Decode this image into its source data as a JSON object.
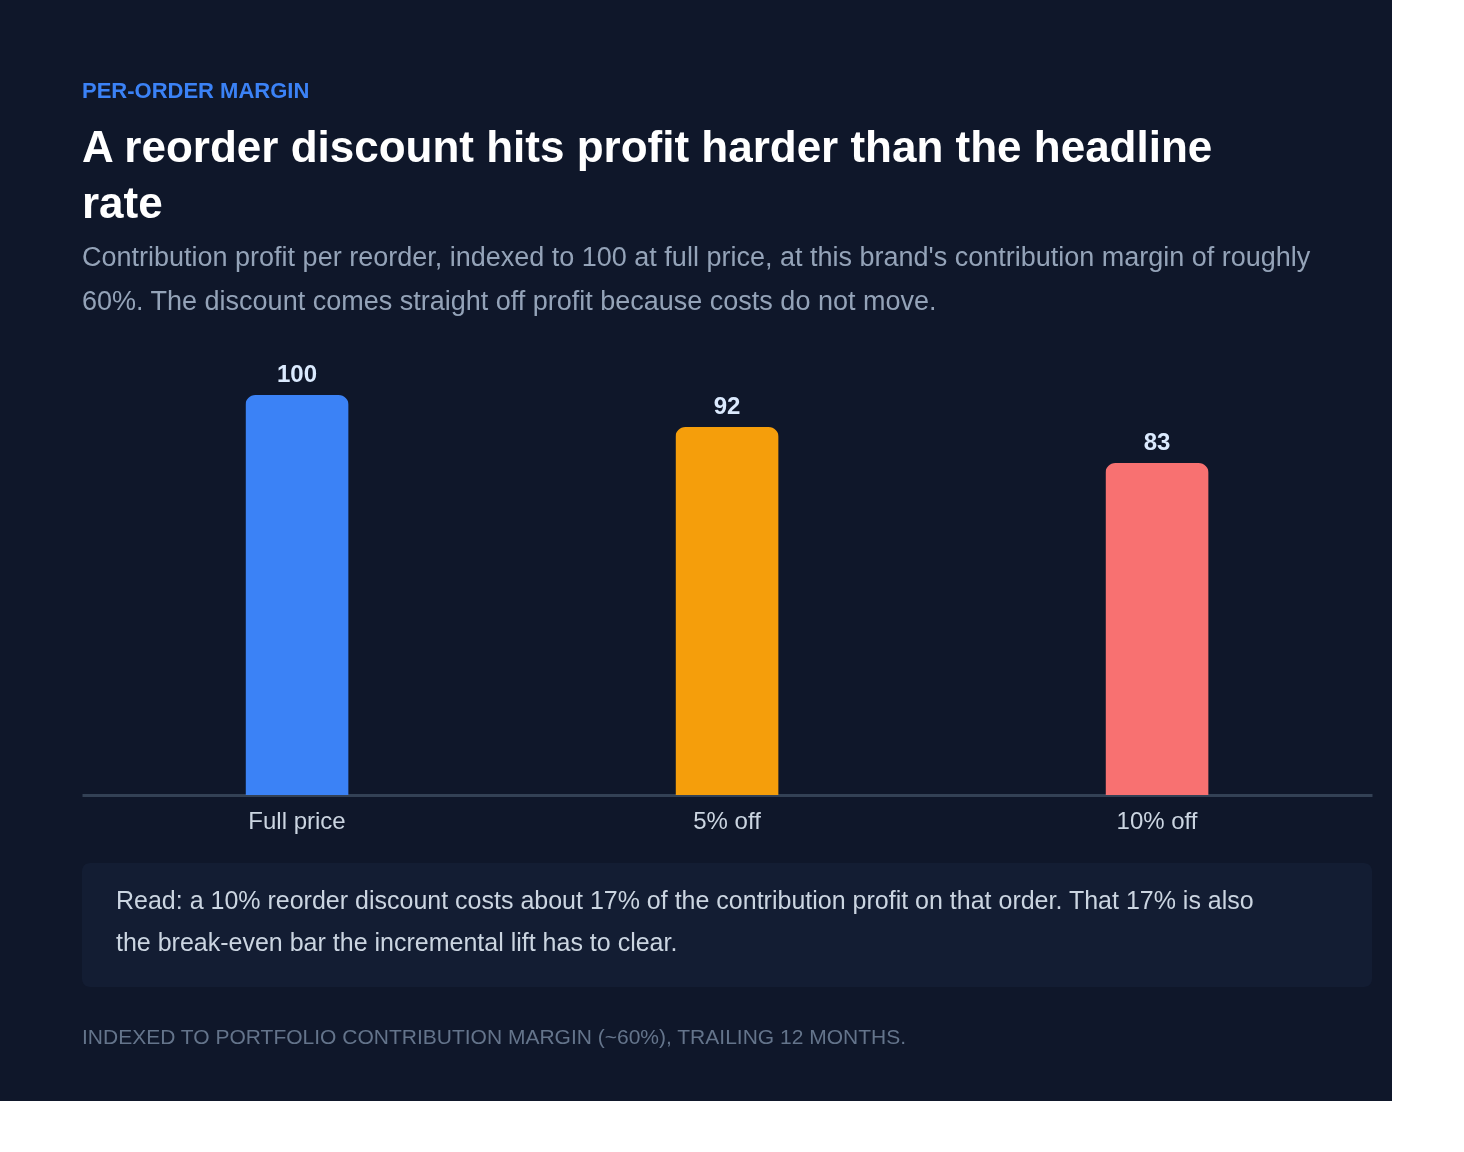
{
  "chart_data": {
    "type": "bar",
    "title": "A reorder discount hits profit harder than the headline rate",
    "subtitle": "Contribution profit per reorder, indexed to 100 at full price, at this brand's contribution margin of roughly 60%. The discount comes straight off profit because costs do not move.",
    "categories": [
      "Full price",
      "5% off",
      "10% off"
    ],
    "values": [
      100,
      92,
      83
    ],
    "colors": [
      "#3b82f6",
      "#f59e0b",
      "#f87171"
    ],
    "data_labels": true,
    "annotations": [
      "PER-ORDER MARGIN",
      "Read: a 10% reorder discount costs about 17% of the contribution profit on that order. That 17% is also the break-even bar the incremental lift has to clear.",
      "INDEXED TO PORTFOLIO CONTRIBUTION MARGIN (~60%), TRAILING 12 MONTHS."
    ]
  }
}
